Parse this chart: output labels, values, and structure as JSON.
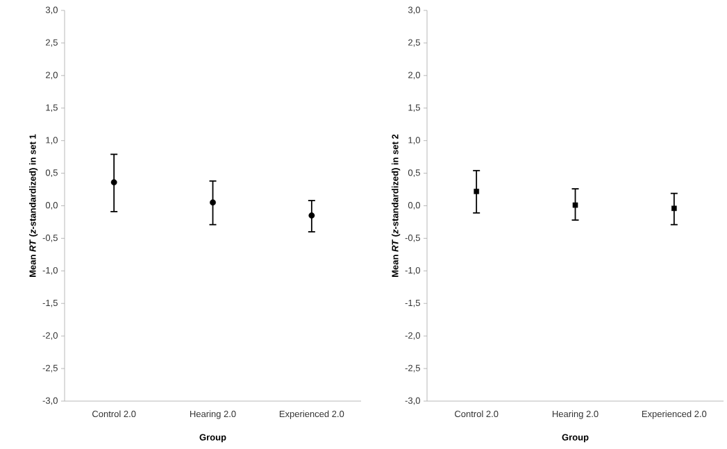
{
  "chart_data": [
    {
      "type": "scatter",
      "ylabel": "Mean *RT* (*z*-standardized) in set 1",
      "xlabel": "Group",
      "categories": [
        "Control 2.0",
        "Hearing 2.0",
        "Experienced 2.0"
      ],
      "values": [
        0.36,
        0.05,
        -0.15
      ],
      "errors": [
        [
          -0.09,
          0.79
        ],
        [
          -0.29,
          0.38
        ],
        [
          -0.4,
          0.08
        ]
      ],
      "color": "#000000",
      "marker": "circle",
      "ylim": [
        -3,
        3
      ],
      "yticks": [
        {
          "value": -3,
          "label": "-3,0"
        },
        {
          "value": -2.5,
          "label": "-2,5"
        },
        {
          "value": -2,
          "label": "-2,0"
        },
        {
          "value": -1.5,
          "label": "-1,5"
        },
        {
          "value": -1,
          "label": "-1,0"
        },
        {
          "value": -0.5,
          "label": "-0,5"
        },
        {
          "value": 0,
          "label": "0,0"
        },
        {
          "value": 0.5,
          "label": "0,5"
        },
        {
          "value": 1,
          "label": "1,0"
        },
        {
          "value": 1.5,
          "label": "1,5"
        },
        {
          "value": 2,
          "label": "2,0"
        },
        {
          "value": 2.5,
          "label": "2,5"
        },
        {
          "value": 3,
          "label": "3,0"
        }
      ]
    },
    {
      "type": "scatter",
      "ylabel": "Mean *RT* (*z*-standardized) in set 2",
      "xlabel": "Group",
      "categories": [
        "Control 2.0",
        "Hearing 2.0",
        "Experienced 2.0"
      ],
      "values": [
        0.22,
        0.01,
        -0.04
      ],
      "errors": [
        [
          -0.11,
          0.54
        ],
        [
          -0.22,
          0.26
        ],
        [
          -0.29,
          0.19
        ]
      ],
      "color": "#000000",
      "marker": "square",
      "ylim": [
        -3,
        3
      ],
      "yticks": [
        {
          "value": -3,
          "label": "-3,0"
        },
        {
          "value": -2.5,
          "label": "-2,5"
        },
        {
          "value": -2,
          "label": "-2,0"
        },
        {
          "value": -1.5,
          "label": "-1,5"
        },
        {
          "value": -1,
          "label": "-1,0"
        },
        {
          "value": -0.5,
          "label": "-0,5"
        },
        {
          "value": 0,
          "label": "0,0"
        },
        {
          "value": 0.5,
          "label": "0,5"
        },
        {
          "value": 1,
          "label": "1,0"
        },
        {
          "value": 1.5,
          "label": "1,5"
        },
        {
          "value": 2,
          "label": "2,0"
        },
        {
          "value": 2.5,
          "label": "2,5"
        },
        {
          "value": 3,
          "label": "3,0"
        }
      ]
    }
  ]
}
